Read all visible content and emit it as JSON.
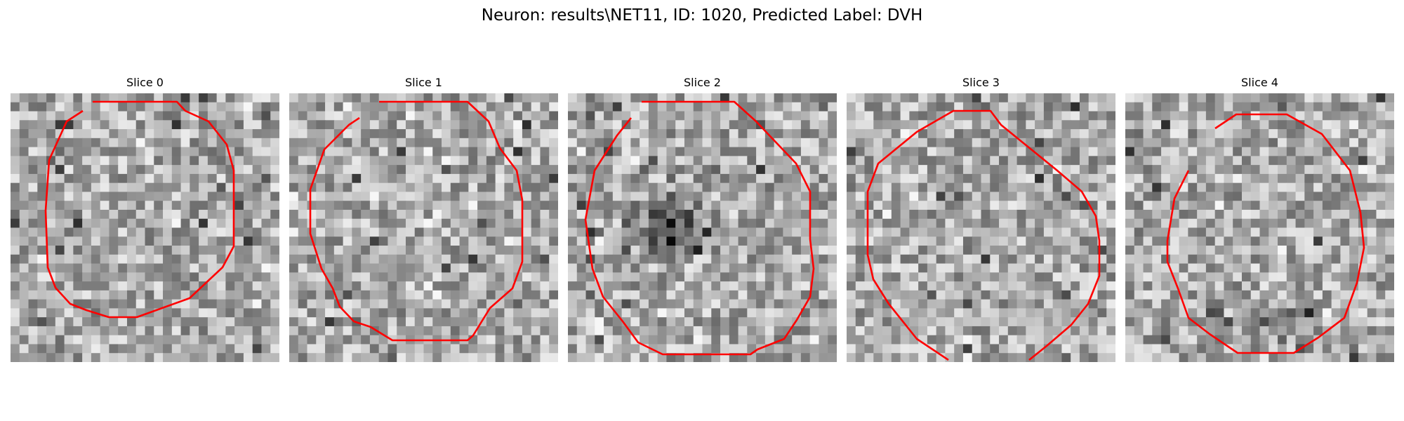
{
  "figure": {
    "title": "Neuron: results\\NET11, ID: 1020, Predicted Label: DVH"
  },
  "slices": [
    {
      "title": "Slice 0"
    },
    {
      "title": "Slice 1"
    },
    {
      "title": "Slice 2"
    },
    {
      "title": "Slice 3"
    },
    {
      "title": "Slice 4"
    }
  ],
  "image_style": {
    "colormap": "gray",
    "grid_size": 30,
    "contour_color": "#ff0000"
  }
}
